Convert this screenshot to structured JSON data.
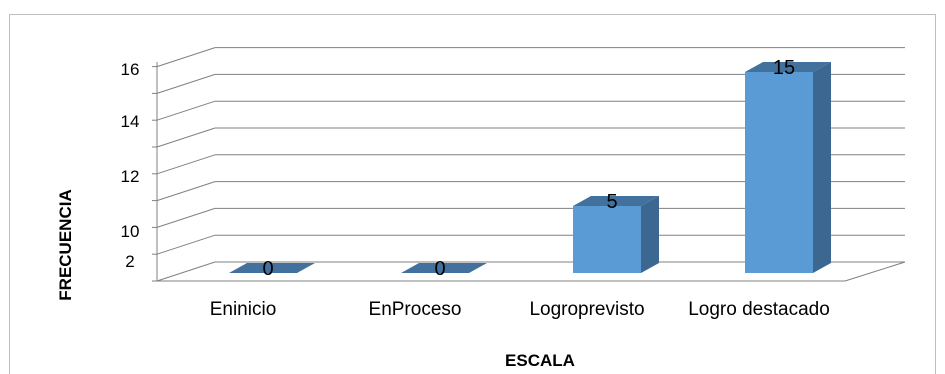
{
  "chart_data": {
    "type": "bar",
    "categories": [
      "Eninicio",
      "EnProceso",
      "Logroprevisto",
      "Logro destacado"
    ],
    "values": [
      0,
      0,
      5,
      15
    ],
    "data_labels": [
      "0",
      "0",
      "5",
      "15"
    ],
    "ytick_labels": [
      "16",
      "14",
      "12",
      "10",
      "2"
    ],
    "xlabel": "ESCALA",
    "ylabel": "FRECUENCIA",
    "ylim": [
      0,
      16
    ],
    "grid": true,
    "legend": "none",
    "style": "3d-column",
    "colors": {
      "bar_front": "#5b9bd5",
      "bar_side": "#3b6790",
      "bar_top": "#41719c",
      "grid": "#808080"
    }
  }
}
